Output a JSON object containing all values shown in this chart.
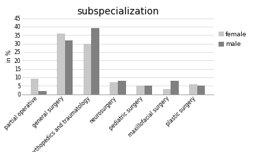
{
  "title": "subspecialization",
  "ylabel": "in %",
  "categories": [
    "partial operative",
    "general surgery",
    "orthopedics and traumatology",
    "neurosurgery",
    "pediatric surgery",
    "maxillofacial surgery",
    "plastic surgery"
  ],
  "female": [
    9,
    36,
    30,
    7,
    5,
    3,
    6
  ],
  "male": [
    2,
    32,
    39,
    8,
    5,
    8,
    5
  ],
  "female_color": "#c8c8c8",
  "male_color": "#808080",
  "ylim": [
    0,
    45
  ],
  "yticks": [
    0,
    5,
    10,
    15,
    20,
    25,
    30,
    35,
    40,
    45
  ],
  "legend_labels": [
    "female",
    "male"
  ],
  "bar_width": 0.3,
  "title_fontsize": 10,
  "axis_fontsize": 6,
  "tick_fontsize": 5.5,
  "legend_fontsize": 6.5
}
